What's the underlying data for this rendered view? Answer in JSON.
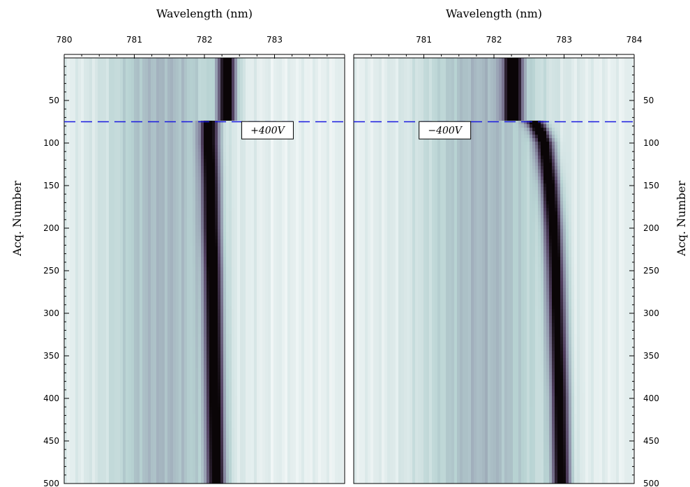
{
  "chart_data": [
    {
      "type": "heatmap",
      "panel": "left",
      "title": "",
      "xlabel": "Wavelength (nm)",
      "ylabel": "Acq. Number",
      "xlim": [
        780,
        784
      ],
      "ylim": [
        500,
        0
      ],
      "x_ticks": [
        780,
        781,
        782,
        783
      ],
      "y_ticks": [
        50,
        100,
        150,
        200,
        250,
        300,
        350,
        400,
        450,
        500
      ],
      "colormap": [
        "#f2f7f7",
        "#b8d3d3",
        "#8d90a8",
        "#503f5f",
        "#0a0507"
      ],
      "marker_line": {
        "y": 75,
        "color": "#1a1adf",
        "style": "dashed"
      },
      "annotation": {
        "text": "+400V",
        "x": 782.9,
        "y": 85
      },
      "peak_center": {
        "acq": [
          0,
          74,
          75,
          100,
          150,
          200,
          250,
          300,
          350,
          400,
          450,
          500
        ],
        "wavelength_nm": [
          782.32,
          782.32,
          782.07,
          782.07,
          782.09,
          782.1,
          782.12,
          782.13,
          782.14,
          782.15,
          782.16,
          782.17
        ]
      },
      "peak_width_nm": 0.13,
      "shoulder_center_nm": 781.4,
      "shoulder_width_nm": 0.8,
      "shoulder_depth": 0.3
    },
    {
      "type": "heatmap",
      "panel": "right",
      "title": "",
      "xlabel": "Wavelength (nm)",
      "ylabel": "Acq. Number",
      "xlim": [
        780,
        784
      ],
      "ylim": [
        500,
        0
      ],
      "x_ticks": [
        781,
        782,
        783,
        784
      ],
      "y_ticks": [
        50,
        100,
        150,
        200,
        250,
        300,
        350,
        400,
        450,
        500
      ],
      "colormap": [
        "#f2f7f7",
        "#b8d3d3",
        "#8d90a8",
        "#503f5f",
        "#0a0507"
      ],
      "marker_line": {
        "y": 75,
        "color": "#1a1adf",
        "style": "dashed"
      },
      "annotation": {
        "text": "−400V",
        "x": 781.3,
        "y": 85
      },
      "peak_center": {
        "acq": [
          0,
          74,
          75,
          85,
          100,
          150,
          200,
          250,
          300,
          350,
          400,
          450,
          500
        ],
        "wavelength_nm": [
          782.27,
          782.27,
          782.58,
          782.65,
          782.72,
          782.8,
          782.85,
          782.88,
          782.9,
          782.92,
          782.94,
          782.95,
          782.96
        ],
        "pre_line_peak_nm": 782.27
      },
      "peak_width_nm": 0.13,
      "shoulder_center_nm": 781.85,
      "shoulder_width_nm": 0.9,
      "shoulder_depth": 0.3
    }
  ]
}
